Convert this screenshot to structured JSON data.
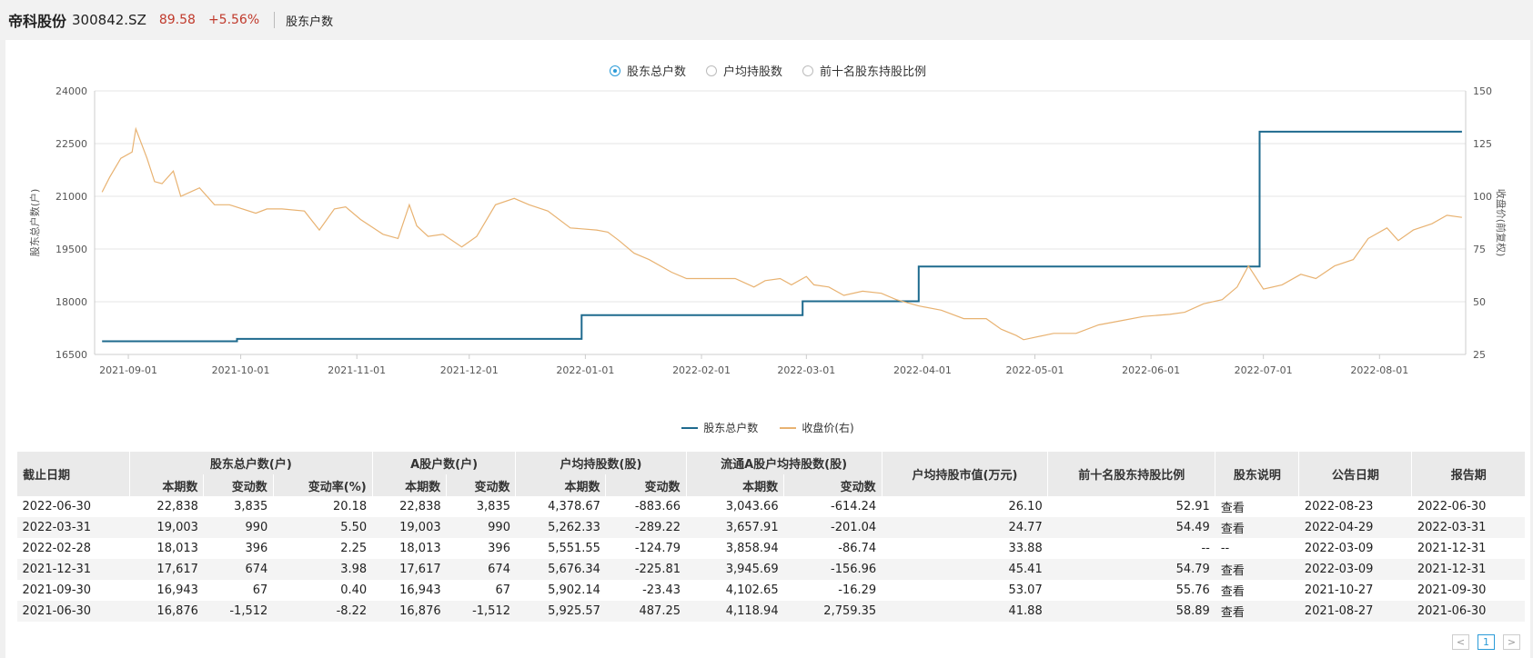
{
  "header": {
    "stock_name": "帝科股份",
    "stock_code": "300842.SZ",
    "price": "89.58",
    "change": "+5.56%",
    "page_tab": "股东户数"
  },
  "radio_options": [
    {
      "label": "股东总户数",
      "selected": true
    },
    {
      "label": "户均持股数",
      "selected": false
    },
    {
      "label": "前十名股东持股比例",
      "selected": false
    }
  ],
  "chart_data": {
    "type": "line",
    "left_axis": {
      "label": "股东总户数(户)",
      "range": [
        16500,
        24000
      ],
      "ticks": [
        16500,
        18000,
        19500,
        21000,
        22500,
        24000
      ]
    },
    "right_axis": {
      "label": "收盘价(前复权)",
      "range": [
        25,
        150
      ],
      "ticks": [
        25,
        50,
        75,
        100,
        125,
        150
      ]
    },
    "x_axis": {
      "range": [
        "2021-08-23",
        "2022-08-24"
      ],
      "tick_labels": [
        "2021-09-01",
        "2021-10-01",
        "2021-11-01",
        "2021-12-01",
        "2022-01-01",
        "2022-02-01",
        "2022-03-01",
        "2022-04-01",
        "2022-05-01",
        "2022-06-01",
        "2022-07-01",
        "2022-08-01"
      ]
    },
    "legend_position": "bottom",
    "series": [
      {
        "name": "股东总户数",
        "color": "#1e6a8e",
        "axis": "left",
        "step": true,
        "points": [
          [
            "2021-08-25",
            16876
          ],
          [
            "2021-09-30",
            16943
          ],
          [
            "2021-12-31",
            17617
          ],
          [
            "2022-02-28",
            18013
          ],
          [
            "2022-03-31",
            19003
          ],
          [
            "2022-06-30",
            22838
          ],
          [
            "2022-08-23",
            22838
          ]
        ]
      },
      {
        "name": "收盘价(右)",
        "color": "#e8b271",
        "axis": "right",
        "step": false,
        "points": [
          [
            "2021-08-25",
            102
          ],
          [
            "2021-08-27",
            109
          ],
          [
            "2021-08-30",
            118
          ],
          [
            "2021-09-02",
            121
          ],
          [
            "2021-09-03",
            132
          ],
          [
            "2021-09-06",
            118
          ],
          [
            "2021-09-08",
            107
          ],
          [
            "2021-09-10",
            106
          ],
          [
            "2021-09-13",
            112
          ],
          [
            "2021-09-15",
            100
          ],
          [
            "2021-09-20",
            104
          ],
          [
            "2021-09-24",
            96
          ],
          [
            "2021-09-28",
            96
          ],
          [
            "2021-10-05",
            92
          ],
          [
            "2021-10-08",
            94
          ],
          [
            "2021-10-12",
            94
          ],
          [
            "2021-10-18",
            93
          ],
          [
            "2021-10-22",
            84
          ],
          [
            "2021-10-26",
            94
          ],
          [
            "2021-10-29",
            95
          ],
          [
            "2021-11-02",
            89
          ],
          [
            "2021-11-08",
            82
          ],
          [
            "2021-11-12",
            80
          ],
          [
            "2021-11-15",
            96
          ],
          [
            "2021-11-17",
            86
          ],
          [
            "2021-11-20",
            81
          ],
          [
            "2021-11-24",
            82
          ],
          [
            "2021-11-29",
            76
          ],
          [
            "2021-12-03",
            81
          ],
          [
            "2021-12-08",
            96
          ],
          [
            "2021-12-13",
            99
          ],
          [
            "2021-12-17",
            96
          ],
          [
            "2021-12-22",
            93
          ],
          [
            "2021-12-28",
            85
          ],
          [
            "2022-01-04",
            84
          ],
          [
            "2022-01-07",
            83
          ],
          [
            "2022-01-10",
            79
          ],
          [
            "2022-01-14",
            73
          ],
          [
            "2022-01-18",
            70
          ],
          [
            "2022-01-24",
            64
          ],
          [
            "2022-01-28",
            61
          ],
          [
            "2022-02-07",
            61
          ],
          [
            "2022-02-10",
            61
          ],
          [
            "2022-02-15",
            57
          ],
          [
            "2022-02-18",
            60
          ],
          [
            "2022-02-22",
            61
          ],
          [
            "2022-02-25",
            58
          ],
          [
            "2022-03-01",
            62
          ],
          [
            "2022-03-03",
            58
          ],
          [
            "2022-03-07",
            57
          ],
          [
            "2022-03-11",
            53
          ],
          [
            "2022-03-16",
            55
          ],
          [
            "2022-03-21",
            54
          ],
          [
            "2022-03-25",
            51
          ],
          [
            "2022-03-31",
            48
          ],
          [
            "2022-04-06",
            46
          ],
          [
            "2022-04-12",
            42
          ],
          [
            "2022-04-18",
            42
          ],
          [
            "2022-04-22",
            37
          ],
          [
            "2022-04-26",
            34
          ],
          [
            "2022-04-28",
            32
          ],
          [
            "2022-05-06",
            35
          ],
          [
            "2022-05-12",
            35
          ],
          [
            "2022-05-18",
            39
          ],
          [
            "2022-05-24",
            41
          ],
          [
            "2022-05-30",
            43
          ],
          [
            "2022-06-06",
            44
          ],
          [
            "2022-06-10",
            45
          ],
          [
            "2022-06-15",
            49
          ],
          [
            "2022-06-20",
            51
          ],
          [
            "2022-06-24",
            57
          ],
          [
            "2022-06-27",
            67
          ],
          [
            "2022-07-01",
            56
          ],
          [
            "2022-07-06",
            58
          ],
          [
            "2022-07-11",
            63
          ],
          [
            "2022-07-15",
            61
          ],
          [
            "2022-07-20",
            67
          ],
          [
            "2022-07-25",
            70
          ],
          [
            "2022-07-29",
            80
          ],
          [
            "2022-08-03",
            85
          ],
          [
            "2022-08-06",
            79
          ],
          [
            "2022-08-10",
            84
          ],
          [
            "2022-08-15",
            87
          ],
          [
            "2022-08-19",
            91
          ],
          [
            "2022-08-23",
            90
          ]
        ]
      }
    ]
  },
  "table": {
    "top_headers": [
      {
        "label": "截止日期",
        "colspan": 1,
        "rowspan": 2
      },
      {
        "label": "股东总户数(户)",
        "colspan": 3,
        "rowspan": 1
      },
      {
        "label": "A股户数(户)",
        "colspan": 2,
        "rowspan": 1
      },
      {
        "label": "户均持股数(股)",
        "colspan": 2,
        "rowspan": 1
      },
      {
        "label": "流通A股户均持股数(股)",
        "colspan": 2,
        "rowspan": 1
      },
      {
        "label": "户均持股市值(万元)",
        "colspan": 1,
        "rowspan": 2
      },
      {
        "label": "前十名股东持股比例",
        "colspan": 1,
        "rowspan": 2
      },
      {
        "label": "股东说明",
        "colspan": 1,
        "rowspan": 2
      },
      {
        "label": "公告日期",
        "colspan": 1,
        "rowspan": 2
      },
      {
        "label": "报告期",
        "colspan": 1,
        "rowspan": 2
      }
    ],
    "sub_headers": [
      "本期数",
      "变动数",
      "变动率(%)",
      "本期数",
      "变动数",
      "本期数",
      "变动数",
      "本期数",
      "变动数"
    ],
    "rows": [
      [
        "2022-06-30",
        "22,838",
        "3,835",
        "20.18",
        "22,838",
        "3,835",
        "4,378.67",
        "-883.66",
        "3,043.66",
        "-614.24",
        "26.10",
        "52.91",
        "查看",
        "2022-08-23",
        "2022-06-30"
      ],
      [
        "2022-03-31",
        "19,003",
        "990",
        "5.50",
        "19,003",
        "990",
        "5,262.33",
        "-289.22",
        "3,657.91",
        "-201.04",
        "24.77",
        "54.49",
        "查看",
        "2022-04-29",
        "2022-03-31"
      ],
      [
        "2022-02-28",
        "18,013",
        "396",
        "2.25",
        "18,013",
        "396",
        "5,551.55",
        "-124.79",
        "3,858.94",
        "-86.74",
        "33.88",
        "--",
        "--",
        "2022-03-09",
        "2021-12-31"
      ],
      [
        "2021-12-31",
        "17,617",
        "674",
        "3.98",
        "17,617",
        "674",
        "5,676.34",
        "-225.81",
        "3,945.69",
        "-156.96",
        "45.41",
        "54.79",
        "查看",
        "2022-03-09",
        "2021-12-31"
      ],
      [
        "2021-09-30",
        "16,943",
        "67",
        "0.40",
        "16,943",
        "67",
        "5,902.14",
        "-23.43",
        "4,102.65",
        "-16.29",
        "53.07",
        "55.76",
        "查看",
        "2021-10-27",
        "2021-09-30"
      ],
      [
        "2021-06-30",
        "16,876",
        "-1,512",
        "-8.22",
        "16,876",
        "-1,512",
        "5,925.57",
        "487.25",
        "4,118.94",
        "2,759.35",
        "41.88",
        "58.89",
        "查看",
        "2021-08-27",
        "2021-06-30"
      ]
    ]
  },
  "pagination": {
    "prev": "<",
    "current": "1",
    "next": ">"
  }
}
